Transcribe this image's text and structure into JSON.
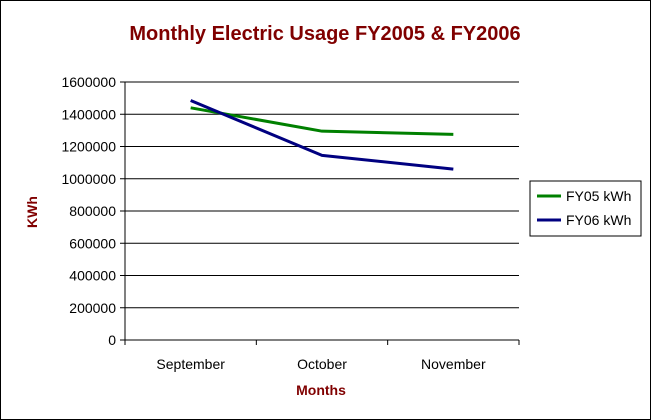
{
  "chart_data": {
    "type": "line",
    "title": "Monthly Electric Usage FY2005 & FY2006",
    "xlabel": "Months",
    "ylabel": "KWh",
    "categories": [
      "September",
      "October",
      "November"
    ],
    "ylim": [
      0,
      1600000
    ],
    "y_ticks": [
      0,
      200000,
      400000,
      600000,
      800000,
      1000000,
      1200000,
      1400000,
      1600000
    ],
    "y_tick_labels": [
      "0",
      "200000",
      "400000",
      "600000",
      "800000",
      "1000000",
      "1200000",
      "1400000",
      "1600000"
    ],
    "grid": true,
    "legend_position": "right",
    "series": [
      {
        "name": "FY05 kWh",
        "color": "#008000",
        "values": [
          1440000,
          1295000,
          1275000
        ]
      },
      {
        "name": "FY06 kWh",
        "color": "#000080",
        "values": [
          1485000,
          1145000,
          1060000
        ]
      }
    ]
  }
}
